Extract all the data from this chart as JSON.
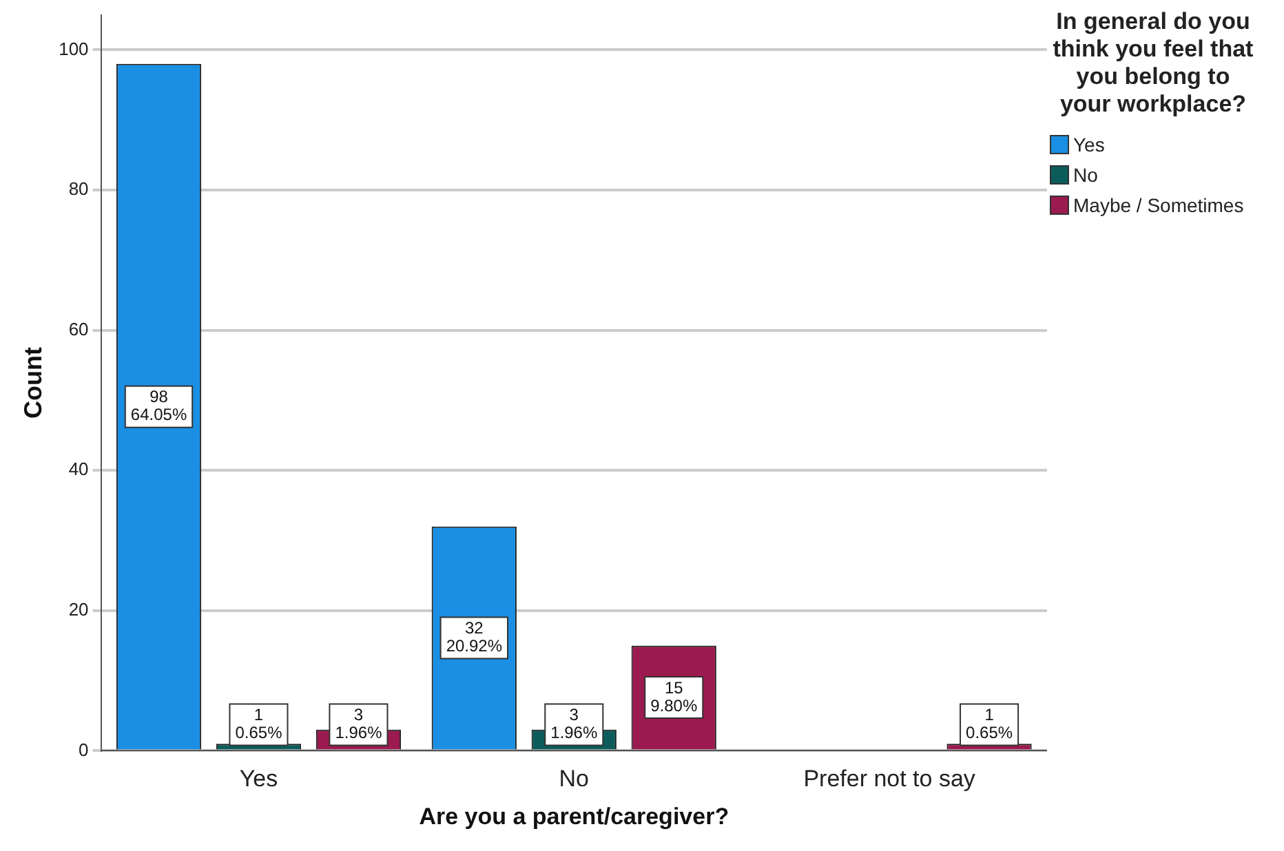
{
  "chart_data": {
    "type": "bar",
    "xlabel": "Are you a parent/caregiver?",
    "ylabel": "Count",
    "legend_title": "In general do you think you feel that you belong to your workplace?",
    "categories": [
      "Yes",
      "No",
      "Prefer not to say"
    ],
    "series": [
      {
        "name": "Yes",
        "color": "#1a8fe3",
        "values": [
          98,
          32,
          null
        ],
        "value_labels": [
          "98\n64.05%",
          "32\n20.92%",
          null
        ]
      },
      {
        "name": "No",
        "color": "#0b5c5a",
        "values": [
          1,
          3,
          null
        ],
        "value_labels": [
          "1\n0.65%",
          "3\n1.96%",
          null
        ]
      },
      {
        "name": "Maybe / Sometimes",
        "color": "#9b1a4f",
        "values": [
          3,
          15,
          1
        ],
        "value_labels": [
          "3\n1.96%",
          "15\n9.80%",
          "1\n0.65%"
        ]
      }
    ],
    "ylim": [
      0,
      105
    ],
    "yticks": [
      0,
      20,
      40,
      60,
      80,
      100
    ],
    "grid": "y",
    "legend": "right"
  }
}
